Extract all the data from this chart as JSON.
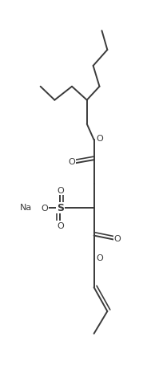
{
  "bg_color": "#ffffff",
  "line_color": "#3a3a3a",
  "line_width": 1.4,
  "font_size": 8,
  "figsize": [
    1.84,
    4.56
  ],
  "dpi": 100,
  "xlim": [
    0,
    184
  ],
  "ylim": [
    0,
    456
  ]
}
